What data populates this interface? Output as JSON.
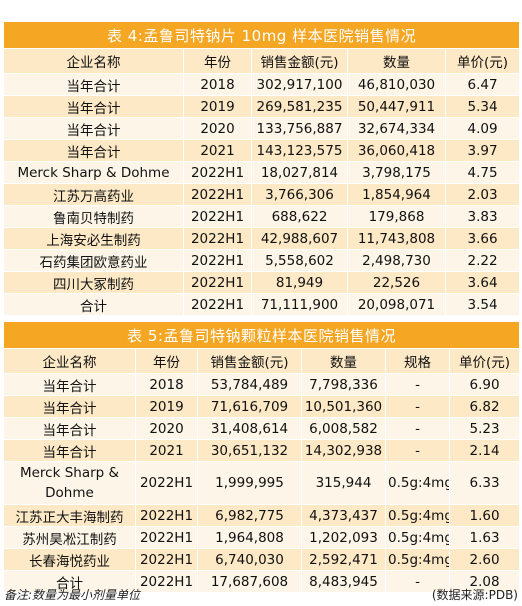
{
  "table4": {
    "title": "表 4:孟鲁司特钠片 10mg 样本医院销售情况",
    "headers": [
      "企业名称",
      "年份",
      "销售金额(元)",
      "数量",
      "单价(元)"
    ],
    "rows": [
      [
        "当年合计",
        "2018",
        "302,917,100",
        "46,810,030",
        "6.47"
      ],
      [
        "当年合计",
        "2019",
        "269,581,235",
        "50,447,911",
        "5.34"
      ],
      [
        "当年合计",
        "2020",
        "133,756,887",
        "32,674,334",
        "4.09"
      ],
      [
        "当年合计",
        "2021",
        "143,123,575",
        "36,060,418",
        "3.97"
      ],
      [
        "Merck Sharp & Dohme",
        "2022H1",
        "18,027,814",
        "3,798,175",
        "4.75"
      ],
      [
        "江苏万高药业",
        "2022H1",
        "3,766,306",
        "1,854,964",
        "2.03"
      ],
      [
        "鲁南贝特制药",
        "2022H1",
        "688,622",
        "179,868",
        "3.83"
      ],
      [
        "上海安必生制药",
        "2022H1",
        "42,988,607",
        "11,743,808",
        "3.66"
      ],
      [
        "石药集团欧意药业",
        "2022H1",
        "5,558,602",
        "2,498,730",
        "2.22"
      ],
      [
        "四川大冢制药",
        "2022H1",
        "81,949",
        "22,526",
        "3.64"
      ],
      [
        "合计",
        "2022H1",
        "71,111,900",
        "20,098,071",
        "3.54"
      ]
    ]
  },
  "table5": {
    "title": "表 5:孟鲁司特钠颗粒样本医院销售情况",
    "headers": [
      "企业名称",
      "年份",
      "销售金额(元)",
      "数量",
      "规格",
      "单价(元)"
    ],
    "rows": [
      [
        "当年合计",
        "2018",
        "53,784,489",
        "7,798,336",
        "-",
        "6.90"
      ],
      [
        "当年合计",
        "2019",
        "71,616,709",
        "10,501,360",
        "-",
        "6.82"
      ],
      [
        "当年合计",
        "2020",
        "31,408,614",
        "6,008,582",
        "-",
        "5.23"
      ],
      [
        "当年合计",
        "2021",
        "30,651,132",
        "14,302,938",
        "-",
        "2.14"
      ],
      [
        "Merck Sharp & Dohme",
        "2022H1",
        "1,999,995",
        "315,944",
        "0.5g:4mg",
        "6.33"
      ],
      [
        "江苏正大丰海制药",
        "2022H1",
        "6,982,775",
        "4,373,437",
        "0.5g:4mg",
        "1.60"
      ],
      [
        "苏州昊凇江制药",
        "2022H1",
        "1,964,808",
        "1,202,093",
        "0.5g:4mg",
        "1.63"
      ],
      [
        "长春海悦药业",
        "2022H1",
        "6,740,030",
        "2,592,471",
        "0.5g:4mg",
        "2.60"
      ],
      [
        "合计",
        "2022H1",
        "17,687,608",
        "8,483,945",
        "-",
        "2.08"
      ]
    ]
  },
  "notes": {
    "left": "备注:数量为最小剂量单位",
    "right": "(数据来源:PDB)"
  }
}
